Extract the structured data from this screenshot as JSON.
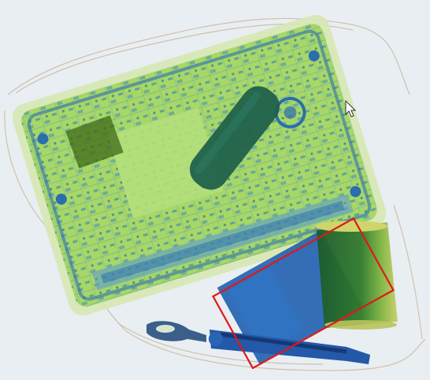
{
  "scan_view": {
    "background": "#e9eef2",
    "colors": {
      "organic_green": "#8fd14f",
      "light_green": "#b9e07a",
      "dense_blue": "#1f5fb0",
      "dark_teal": "#1c5e4a",
      "olive_dark": "#3f6a17",
      "detection_box": "#e01818"
    },
    "objects": [
      {
        "name": "laptop",
        "material": "mixed"
      },
      {
        "name": "cylindrical-object",
        "material": "dense"
      },
      {
        "name": "canister",
        "material": "organic"
      },
      {
        "name": "rectangular-container",
        "material": "dense"
      },
      {
        "name": "tool",
        "material": "metallic"
      }
    ],
    "detection": {
      "label": "",
      "color": "#e01818"
    },
    "cursor_icon": "mouse-pointer-icon"
  }
}
